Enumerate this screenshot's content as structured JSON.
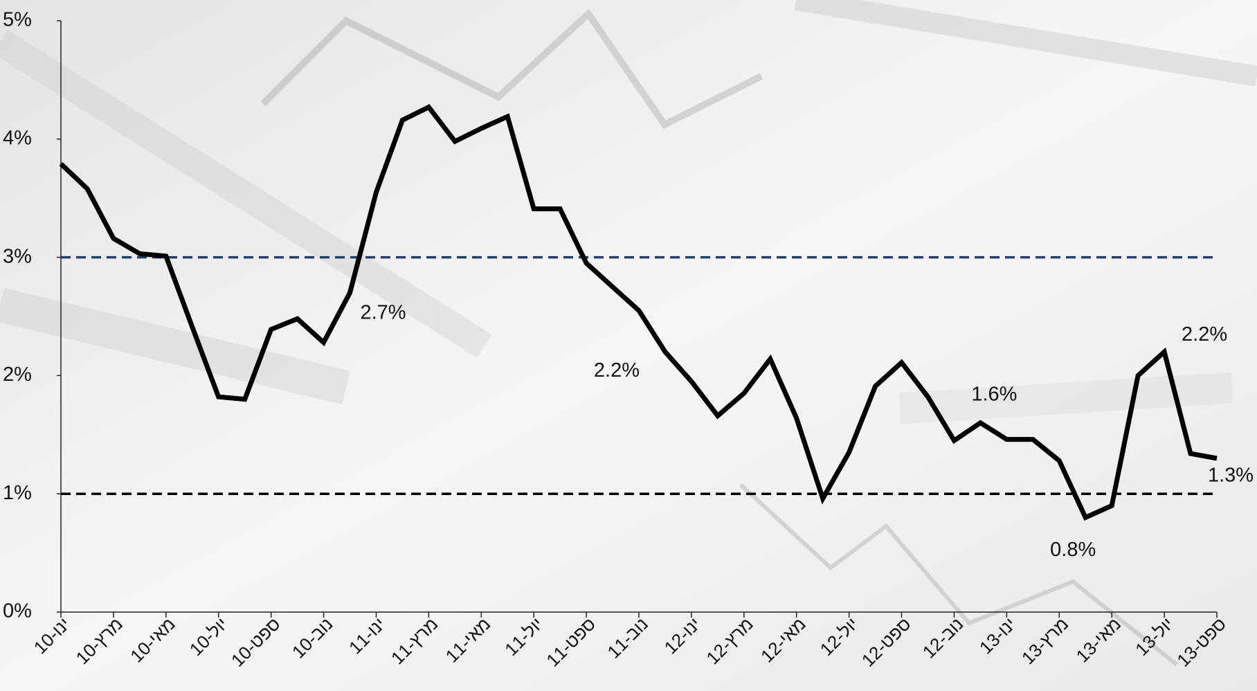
{
  "chart_data": {
    "type": "line",
    "categories": [
      "ינו-10",
      null,
      "מרץ-10",
      null,
      "מאי-10",
      null,
      "יול-10",
      null,
      "ספט-10",
      null,
      "נוב-10",
      null,
      "ינו-11",
      null,
      "מרץ-11",
      null,
      "מאי-11",
      null,
      "יול-11",
      null,
      "ספט-11",
      null,
      "נוב-11",
      null,
      "ינו-12",
      null,
      "מרץ-12",
      null,
      "מאי-12",
      null,
      "יול-12",
      null,
      "ספט-12",
      null,
      "נוב-12",
      null,
      "ינו-13",
      null,
      "מרץ-13",
      null,
      "מאי-13",
      null,
      "יול-13",
      null,
      "ספט-13"
    ],
    "series": [
      {
        "color": "#000000",
        "values": [
          3.79,
          3.58,
          3.16,
          3.03,
          3.01,
          2.41,
          1.82,
          1.8,
          2.39,
          2.48,
          2.28,
          2.7,
          3.55,
          4.16,
          4.27,
          3.98,
          4.09,
          4.19,
          3.41,
          3.41,
          2.95,
          2.75,
          2.55,
          2.2,
          1.95,
          1.66,
          1.85,
          2.14,
          1.64,
          0.96,
          1.35,
          1.91,
          2.11,
          1.82,
          1.45,
          1.6,
          1.46,
          1.46,
          1.28,
          0.8,
          0.9,
          2.0,
          2.2,
          1.34,
          1.3
        ],
        "value_labels": [
          null,
          null,
          null,
          null,
          null,
          null,
          null,
          null,
          null,
          null,
          null,
          "2.7%",
          null,
          null,
          null,
          null,
          null,
          null,
          null,
          null,
          null,
          null,
          null,
          "2.2%",
          null,
          null,
          null,
          null,
          null,
          null,
          null,
          null,
          null,
          null,
          null,
          "1.6%",
          null,
          null,
          null,
          "0.8%",
          null,
          null,
          "2.2%",
          null,
          "1.3%"
        ]
      }
    ],
    "reference_lines": [
      {
        "value": 3,
        "color": "#1f3f73"
      },
      {
        "value": 1,
        "color": "#000000"
      }
    ],
    "ylim": [
      0,
      5
    ],
    "yticks": [
      {
        "value": 0,
        "label": "0%"
      },
      {
        "value": 1,
        "label": "1%"
      },
      {
        "value": 2,
        "label": "2%"
      },
      {
        "value": 3,
        "label": "3%"
      },
      {
        "value": 4,
        "label": "4%"
      },
      {
        "value": 5,
        "label": "5%"
      }
    ]
  }
}
